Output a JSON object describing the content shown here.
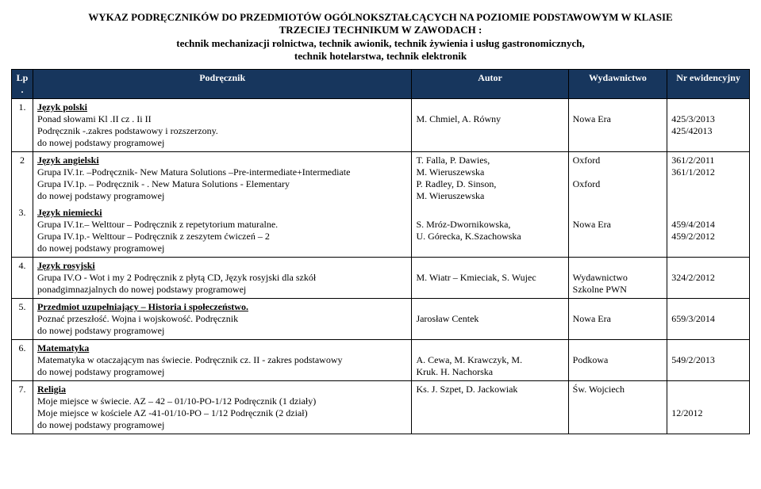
{
  "header": {
    "line1": "WYKAZ PODRĘCZNIKÓW DO PRZEDMIOTÓW OGÓLNOKSZTAŁCĄCYCH NA POZIOMIE PODSTAWOWYM W KLASIE",
    "line2": "TRZECIEJ TECHNIKUM W ZAWODACH :",
    "line3": "technik mechanizacji rolnictwa, technik awionik, technik żywienia i usług gastronomicznych,",
    "line4": "technik hotelarstwa, technik elektronik"
  },
  "thead": {
    "lp": "Lp.",
    "podrecznik": "Podręcznik",
    "autor": "Autor",
    "wyd": "Wydawnictwo",
    "nr": "Nr ewidencyjny"
  },
  "rows": {
    "r1": {
      "lp": "1.",
      "title": "Język polski",
      "l1": "Ponad słowami  Kl .II  cz . Ii II",
      "l2": "Podręcznik -.zakres podstawowy i rozszerzony.",
      "l3": "do nowej podstawy programowej",
      "autor": "M. Chmiel, A. Równy",
      "wyd": "Nowa Era",
      "nr1": "425/3/2013",
      "nr2": "425/42013"
    },
    "r2": {
      "lp": "2",
      "title": "Język angielski",
      "l1a": "Grupa IV.1r. –",
      "l1b": "Podręcznik-  New Matura Solutions –Pre-intermediate+Intermediate",
      "l2a": "Grupa IV.1p. – ",
      "l2b": "Podręcznik - . New Matura Solutions - Elementary",
      "l3": "do nowej podstawy programowej",
      "a1": "T. Falla, P. Dawies,",
      "a2": "M. Wieruszewska",
      "a3": "P. Radley, D. Sinson,",
      "a4": "M. Wieruszewska",
      "w1": "Oxford",
      "w2": "Oxford",
      "nr1": "361/2/2011",
      "nr2": "361/1/2012"
    },
    "r3": {
      "lp": "3.",
      "title": "Język niemiecki",
      "l1": "Grupa IV.1r.– Welttour – Podręcznik z repetytorium maturalne.",
      "l2": "Grupa IV.1p.-  Welttour – Podręcznik z zeszytem ćwiczeń – 2",
      "l3": "do nowej podstawy programowej",
      "a1": "S. Mróz-Dwornikowska,",
      "a2": "U. Górecka, K.Szachowska",
      "wyd": "Nowa Era",
      "nr1": "459/4/2014",
      "nr2": "459/2/2012"
    },
    "r4": {
      "lp": "4.",
      "title": "Język rosyjski",
      "l1": "Grupa IV.O - Wot i my 2 Podręcznik z płytą CD, Język rosyjski dla szkół",
      "l2": "ponadgimnazjalnych do nowej podstawy programowej",
      "autor": "M. Wiatr – Kmieciak, S. Wujec",
      "w1": "Wydawnictwo",
      "w2": "Szkolne PWN",
      "nr": "324/2/2012"
    },
    "r5": {
      "lp": "5.",
      "title": "Przedmiot uzupełniający – Historia i społeczeństwo.",
      "l1": "Poznać przeszłość. Wojna i wojskowość. Podręcznik",
      "l2": "do nowej podstawy programowej",
      "autor": "Jarosław Centek",
      "wyd": "Nowa Era",
      "nr": "659/3/2014"
    },
    "r6": {
      "lp": "6.",
      "title": "Matematyka",
      "l1": "Matematyka w otaczającym nas świecie. Podręcznik cz. II - zakres podstawowy",
      "l2": "do nowej podstawy programowej",
      "a1": "A. Cewa, M. Krawczyk, M.",
      "a2": "Kruk. H. Nachorska",
      "wyd": "Podkowa",
      "nr": "549/2/2013"
    },
    "r7": {
      "lp": "7.",
      "title": "Religia",
      "l1": "Moje miejsce w świecie. AZ – 42 – 01/10-PO-1/12 Podręcznik (1 działy)",
      "l2": "Moje miejsce w kościele AZ -41-01/10-PO – 1/12 Podręcznik (2 dział)",
      "l3": "do nowej podstawy programowej",
      "autor": "Ks. J. Szpet, D. Jackowiak",
      "wyd": "Św. Wojciech",
      "nr": "12/2012"
    }
  }
}
